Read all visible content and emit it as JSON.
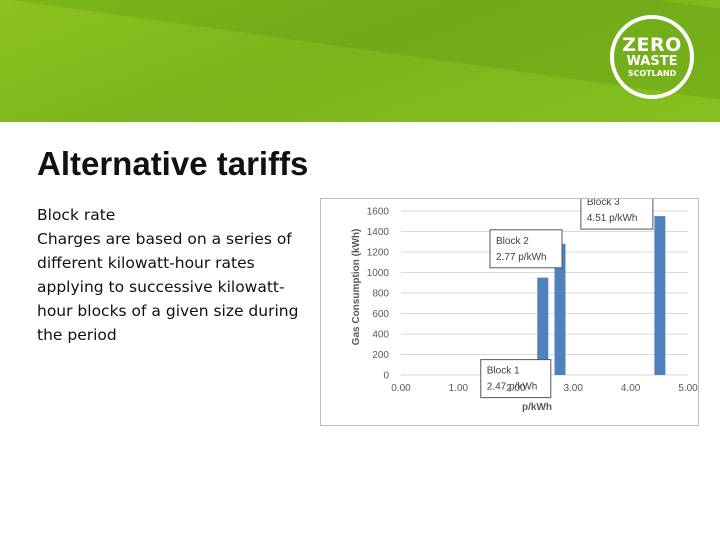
{
  "logo": {
    "line1": "ZERO",
    "line2": "WASTE",
    "line3": "SCOTLAND"
  },
  "slide": {
    "title": "Alternative tariffs",
    "heading": "Block rate",
    "description": "Charges are based on a series of different kilowatt-hour rates applying to successive kilowatt-hour blocks of a given size during the period"
  },
  "colors": {
    "banner": "#86bf1f",
    "bar": "#4f81bd",
    "grid": "#d9d9d9"
  },
  "chart_data": {
    "type": "bar",
    "title": "",
    "xlabel": "p/kWh",
    "ylabel": "Gas Consumption (kWh)",
    "xlim": [
      0,
      5
    ],
    "ylim": [
      0,
      1600
    ],
    "x_ticks": [
      "0.00",
      "1.00",
      "2.00",
      "3.00",
      "4.00",
      "5.00"
    ],
    "y_ticks": [
      "0",
      "200",
      "400",
      "600",
      "800",
      "1000",
      "1200",
      "1400",
      "1600"
    ],
    "grid": true,
    "bars": [
      {
        "x": 2.47,
        "y": 950
      },
      {
        "x": 2.77,
        "y": 1280
      },
      {
        "x": 4.51,
        "y": 1550
      }
    ],
    "annotations": [
      {
        "line1": "Block 1",
        "line2": "2.47 p/kWh"
      },
      {
        "line1": "Block 2",
        "line2": "2.77 p/kWh"
      },
      {
        "line1": "Block 3",
        "line2": "4.51 p/kWh"
      }
    ]
  }
}
